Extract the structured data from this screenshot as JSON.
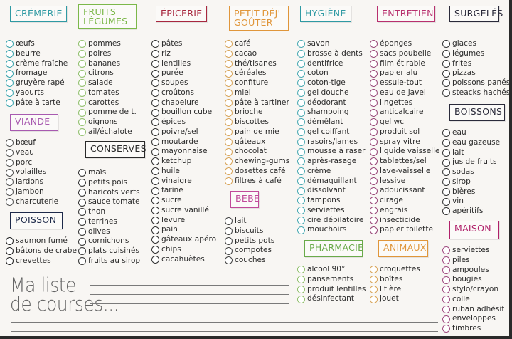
{
  "title": {
    "line1": "Ma liste",
    "line2": "de courses..."
  },
  "sections": [
    {
      "key": "cremerie",
      "title": "CRÉMERIE",
      "color": "#2f9aa3",
      "circle": "#3aa4ad",
      "items": [
        "œufs",
        "beurre",
        "crème fraîche",
        "fromage",
        "gruyère rapé",
        "yaourts",
        "pâte à tarte"
      ]
    },
    {
      "key": "fruits-legumes",
      "title": "FRUITS\nLÉGUMES",
      "color": "#7cb84a",
      "circle": "#8fbf6a",
      "items": [
        "pommes",
        "poires",
        "bananes",
        "citrons",
        "salade",
        "tomates",
        "carottes",
        "pomme de t.",
        "oignons",
        "ail/échalote"
      ]
    },
    {
      "key": "epicerie",
      "title": "ÉPICERIE",
      "color": "#a8283f",
      "circle": "#333333",
      "items": [
        "pâtes",
        "riz",
        "lentilles",
        "purée",
        "soupes",
        "croûtons",
        "chapelure",
        "bouillon cube",
        "épices",
        "poivre/sel",
        "moutarde",
        "mayonnaise",
        "ketchup",
        "huile",
        "vinaigre",
        "farine",
        "sucre",
        "sucre vanillé",
        "levure",
        "pain",
        "gâteaux apéro",
        "chips",
        "cacahuètes"
      ]
    },
    {
      "key": "petit-dej",
      "title": "PETIT-DÉJ'\nGOÛTER",
      "color": "#e0963a",
      "circle": "#d8a55a",
      "items": [
        "café",
        "cacao",
        "thé/tisanes",
        "céréales",
        "confiture",
        "miel",
        "pâte à tartiner",
        "brioche",
        "biscottes",
        "pain de mie",
        "gâteaux",
        "chocolat",
        "chewing-gums",
        "dosettes café",
        "filtres à café"
      ]
    },
    {
      "key": "hygiene",
      "title": "HYGIÈNE",
      "color": "#2f9aa3",
      "circle": "#4aaab3",
      "items": [
        "savon",
        "brosse à dents",
        "dentifrice",
        "coton",
        "coton-tige",
        "gel douche",
        "déodorant",
        "shampoing",
        "démêlant",
        "gel coiffant",
        "rasoirs/lames",
        "mousse à raser",
        "après-rasage",
        "crème",
        "démaquillant",
        "dissolvant",
        "tampons",
        "serviettes",
        "cire dépilatoire",
        "mouchoirs"
      ]
    },
    {
      "key": "entretien",
      "title": "ENTRETIEN",
      "color": "#b8306e",
      "circle": "#9a4a7a",
      "items": [
        "éponges",
        "sacs poubelle",
        "film étirable",
        "papier alu",
        "essuie-tout",
        "eau de javel",
        "lingettes",
        "anticalcaire",
        "gel wc",
        "produit sol",
        "spray vitre",
        "liquide vaisselle",
        "tablettes/sel",
        "lave-vaisselle",
        "lessive",
        "adoucissant",
        "cirage",
        "engrais",
        "insecticide",
        "papier toilette"
      ]
    },
    {
      "key": "surgeles",
      "title": "SURGELÉS",
      "color": "#2a2a3a",
      "circle": "#333333",
      "items": [
        "glaces",
        "légumes",
        "frites",
        "pizzas",
        "poissons panés",
        "steacks hachés"
      ]
    },
    {
      "key": "viande",
      "title": "VIANDE",
      "color": "#a85ab0",
      "circle": "#555555",
      "items": [
        "bœuf",
        "veau",
        "porc",
        "volailles",
        "lardons",
        "jambon",
        "charcuterie"
      ]
    },
    {
      "key": "conserves",
      "title": "CONSERVES",
      "color": "#2a2a2a",
      "circle": "#333333",
      "items": [
        "maïs",
        "petits pois",
        "haricots verts",
        "sauce tomate",
        "thon",
        "terrines",
        "olives",
        "cornichons",
        "plats cuisinés",
        "fruits au sirop"
      ]
    },
    {
      "key": "poisson",
      "title": "POISSON",
      "color": "#1e2a4a",
      "circle": "#222222",
      "items": [
        "saumon fumé",
        "bâtons de crabe",
        "crevettes"
      ]
    },
    {
      "key": "bebe",
      "title": "BÉBÉ",
      "color": "#c04a9a",
      "circle": "#444444",
      "items": [
        "lait",
        "biscuits",
        "petits pots",
        "compotes",
        "couches"
      ]
    },
    {
      "key": "boissons",
      "title": "BOISSONS",
      "color": "#2a2a3a",
      "circle": "#333333",
      "items": [
        "eau",
        "eau gazeuse",
        "lait",
        "jus de fruits",
        "sodas",
        "sirop",
        "bières",
        "vin",
        "apéritifs"
      ]
    },
    {
      "key": "pharmacie",
      "title": "PHARMACIE",
      "color": "#6aaa4a",
      "circle": "#8fbf6a",
      "items": [
        "alcool 90°",
        "pansements",
        "produit lentilles",
        "désinfectant"
      ]
    },
    {
      "key": "animaux",
      "title": "ANIMAUX",
      "color": "#e0963a",
      "circle": "#d8a55a",
      "items": [
        "croquettes",
        "boîtes",
        "litière",
        "jouet"
      ]
    },
    {
      "key": "maison",
      "title": "MAISON",
      "color": "#b0206a",
      "circle": "#a04a80",
      "items": [
        "serviettes",
        "piles",
        "ampoules",
        "bougies",
        "stylo/crayon",
        "colle",
        "ruban adhésif",
        "enveloppes",
        "timbres"
      ]
    }
  ]
}
